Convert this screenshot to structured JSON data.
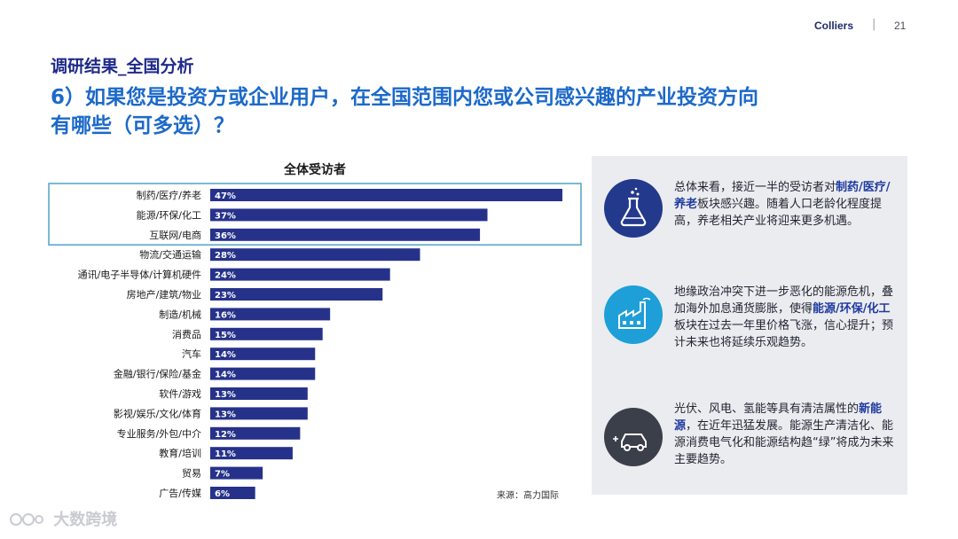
{
  "header": {
    "brand": "Colliers",
    "separator": "|",
    "page": "21"
  },
  "section_title": "调研结果_全国分析",
  "question": {
    "line1": "6）如果您是投资方或企业用户，在全国范围内您或公司感兴趣的产业投资方向",
    "line2": "有哪些（可多选）？"
  },
  "chart_data": {
    "type": "bar",
    "orientation": "horizontal",
    "title": "全体受访者",
    "categories": [
      "制药/医疗/养老",
      "能源/环保/化工",
      "互联网/电商",
      "物流/交通运输",
      "通讯/电子半导体/计算机硬件",
      "房地产/建筑/物业",
      "制造/机械",
      "消费品",
      "汽车",
      "金融/银行/保险/基金",
      "软件/游戏",
      "影视/娱乐/文化/体育",
      "专业服务/外包/中介",
      "教育/培训",
      "贸易",
      "广告/传媒"
    ],
    "values": [
      47,
      37,
      36,
      28,
      24,
      23,
      16,
      15,
      14,
      14,
      13,
      13,
      12,
      11,
      7,
      6
    ],
    "value_labels": [
      "47%",
      "37%",
      "36%",
      "28%",
      "24%",
      "23%",
      "16%",
      "15%",
      "14%",
      "14%",
      "13%",
      "13%",
      "12%",
      "11%",
      "7%",
      "6%"
    ],
    "unit": "%",
    "highlighted_categories": [
      "制药/医疗/养老",
      "能源/环保/化工",
      "互联网/电商"
    ],
    "bar_color": "#26328a",
    "highlight_border_color": "#4fa3c7",
    "xlim": [
      0,
      50
    ],
    "grid": false,
    "legend": "none"
  },
  "source": "来源：高力国际",
  "panel": {
    "items": [
      {
        "icon": "flask-icon",
        "icon_color": "#233a8c",
        "text_before": "总体来看，接近一半的受访者对",
        "highlight": "制药/医疗/养老",
        "text_after": "板块感兴趣。随着人口老龄化程度提高，养老相关产业将迎来更多机遇。"
      },
      {
        "icon": "factory-icon",
        "icon_color": "#1e9fd8",
        "text_before": "地缘政治冲突下进一步恶化的能源危机，叠加海外加息通货膨胀，使得",
        "highlight": "能源/环保/化工",
        "text_after": "板块在过去一年里价格飞涨，信心提升；预计未来也将延续乐观趋势。"
      },
      {
        "icon": "electric-car-icon",
        "icon_color": "#3a3f4a",
        "text_before": "光伏、风电、氢能等具有清洁属性的",
        "highlight": "新能源",
        "text_after": "，在近年迅猛发展。能源生产清洁化、能源消费电气化和能源结构趋“绿”将成为未来主要趋势。"
      }
    ]
  },
  "watermark": {
    "text": "大数跨境"
  },
  "colors": {
    "title_blue": "#1c69c9",
    "section_navy": "#1f2a8a",
    "panel_bg": "#ebecef"
  }
}
